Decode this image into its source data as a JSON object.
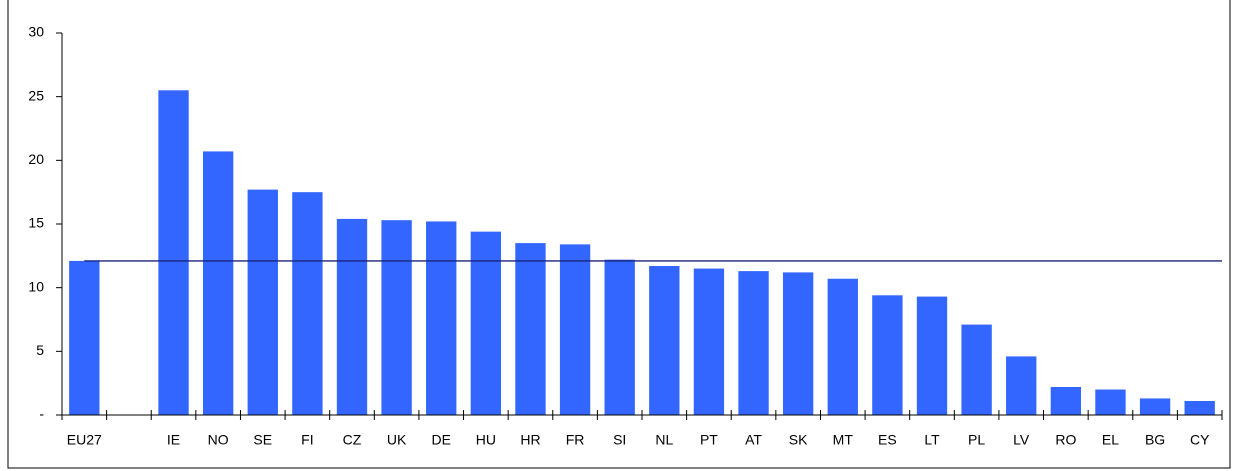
{
  "chart_data": {
    "type": "bar",
    "categories": [
      "EU27",
      null,
      "IE",
      "NO",
      "SE",
      "FI",
      "CZ",
      "UK",
      "DE",
      "HU",
      "HR",
      "FR",
      "SI",
      "NL",
      "PT",
      "AT",
      "SK",
      "MT",
      "ES",
      "LT",
      "PL",
      "LV",
      "RO",
      "EL",
      "BG",
      "CY"
    ],
    "values": [
      12.1,
      null,
      25.5,
      20.7,
      17.7,
      17.5,
      15.4,
      15.3,
      15.2,
      14.4,
      13.5,
      13.4,
      12.2,
      11.7,
      11.5,
      11.3,
      11.2,
      10.7,
      9.4,
      9.3,
      7.1,
      4.6,
      2.2,
      2.0,
      1.3,
      1.1
    ],
    "color": "#3366ff",
    "ylim": [
      0,
      30
    ],
    "yticks": [
      {
        "value": 0,
        "label": "-"
      },
      5,
      10,
      15,
      20,
      25,
      30
    ]
  }
}
